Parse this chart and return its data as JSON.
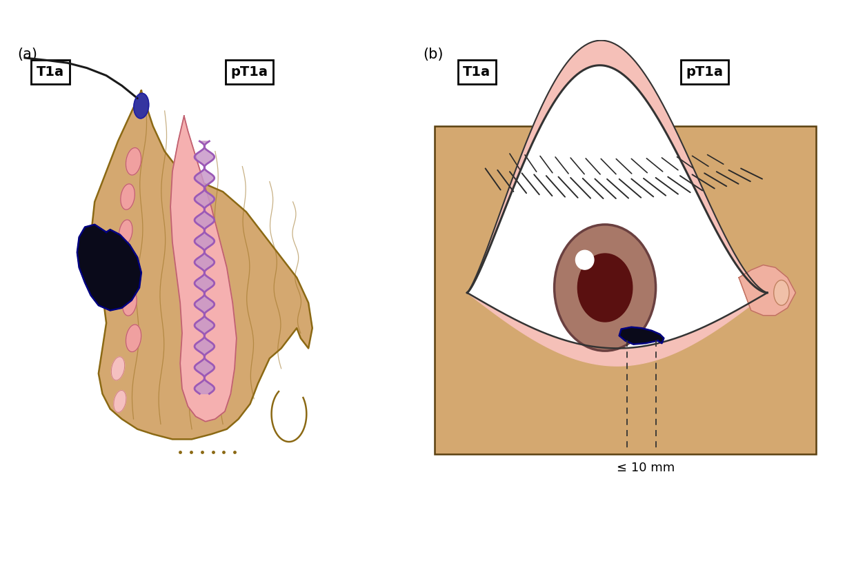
{
  "bg_color": "#ffffff",
  "skin_color": "#D4A870",
  "skin_outline": "#8B6914",
  "pink_tissue": "#F5B8B8",
  "pink_tissue2": "#F0C0C0",
  "purple_fill": "#C898C8",
  "purple_line": "#9B59B6",
  "dark_outline": "#333333",
  "tumor_color": "#0a0a1a",
  "tumor_outline": "#000080",
  "eyelid_pink": "#F5C0B8",
  "eye_white": "#ffffff",
  "iris_color": "#A07060",
  "pupil_color": "#5a1010",
  "hair_color": "#1a1a1a",
  "hair_bulb_color": "#4040A0",
  "caruncle_color": "#F0B0A0",
  "fiber_color": "#B8860B",
  "label_T1a": "T1a",
  "label_pT1a": "pT1a",
  "label_a": "(a)",
  "label_b": "(b)",
  "measurement_label": "≤ 10 mm"
}
